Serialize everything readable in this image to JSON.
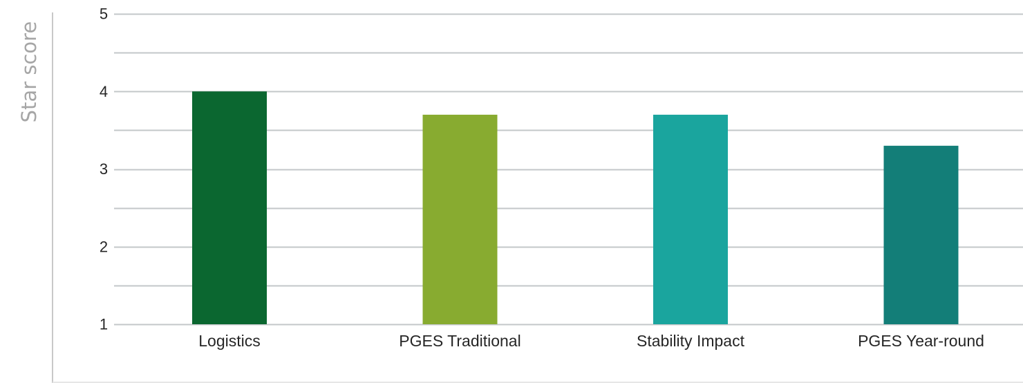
{
  "chart_data": {
    "type": "bar",
    "title": "",
    "xlabel": "",
    "ylabel": "Star score",
    "categories": [
      "Logistics",
      "PGES Traditional",
      "Stability Impact",
      "PGES Year-round"
    ],
    "values": [
      4.0,
      3.7,
      3.7,
      3.3
    ],
    "colors": [
      "#0b6730",
      "#88ab30",
      "#1aa59e",
      "#137e78"
    ],
    "ylim": [
      1,
      5
    ],
    "yticks": [
      1,
      2,
      3,
      4,
      5
    ],
    "minor_gridlines": [
      1.5,
      2.5,
      3.5,
      4.5
    ],
    "grid": true,
    "gridline_color": "#c3c7c9",
    "legend": "none"
  }
}
